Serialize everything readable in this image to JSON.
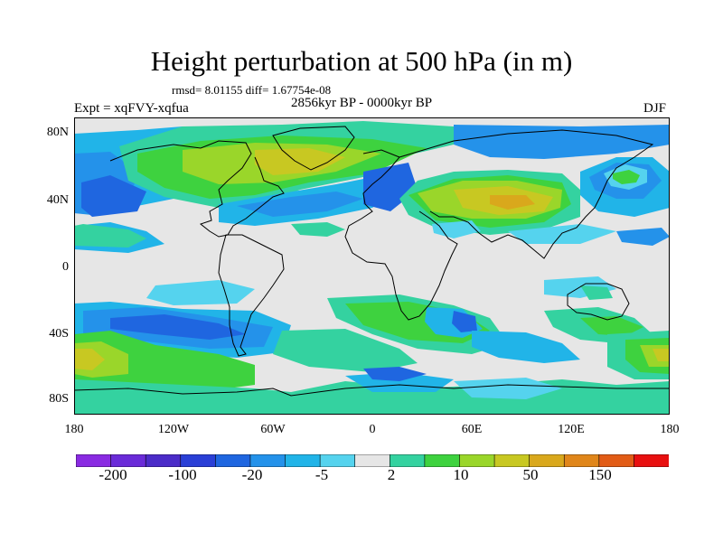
{
  "title": "Height perturbation at 500 hPa (in m)",
  "stats_text": "rmsd= 8.01155 diff= 1.67754e-08",
  "left_label": "Expt = xqFVY-xqfua",
  "center_label": "2856kyr BP - 0000kyr BP",
  "right_label": "DJF",
  "lat_labels": [
    "80N",
    "40N",
    "0",
    "40S",
    "80S"
  ],
  "lon_labels": [
    "180",
    "120W",
    "60W",
    "0",
    "60E",
    "120E",
    "180"
  ],
  "colorbar": {
    "colors": [
      "#8a2be2",
      "#6a2bd8",
      "#4b2cc8",
      "#2a3fd6",
      "#1f66e0",
      "#2492ea",
      "#21b4e8",
      "#55d3ee",
      "#e6e6e6",
      "#34d2a0",
      "#3ed23f",
      "#9ad62a",
      "#c8c822",
      "#d9a81c",
      "#e0861a",
      "#e25c16",
      "#e81010"
    ],
    "labels": [
      "-200",
      "-100",
      "-20",
      "-5",
      "2",
      "10",
      "50",
      "150"
    ]
  }
}
